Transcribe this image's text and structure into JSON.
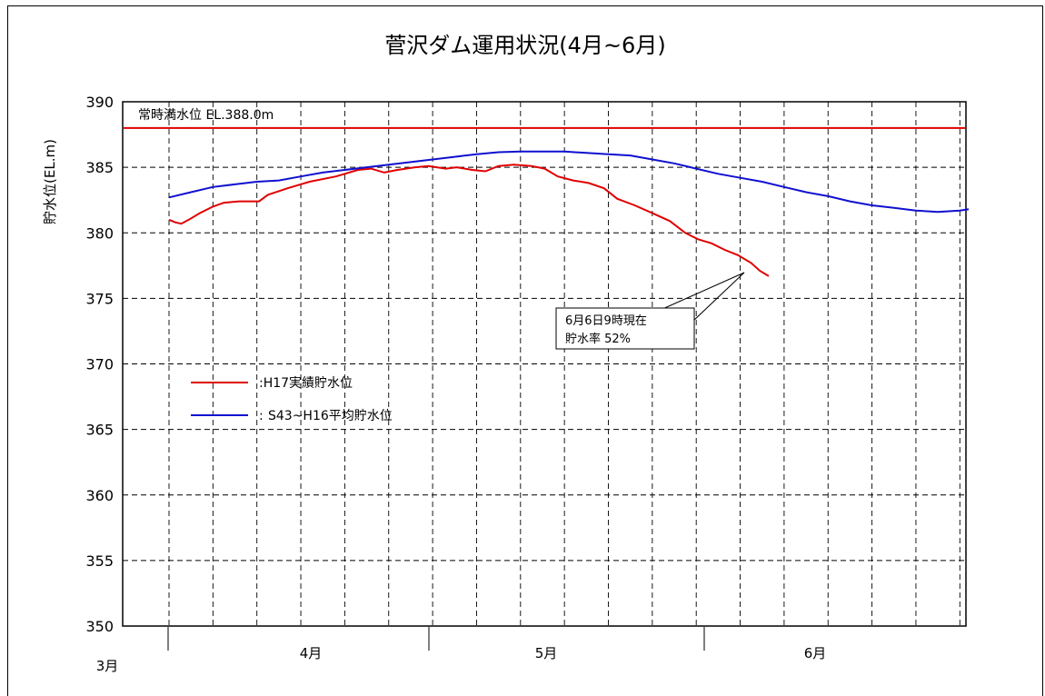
{
  "chart_data": {
    "type": "line",
    "title": "菅沢ダム運用状況(4月~6月)",
    "ylabel": "貯水位(EL.m)",
    "ylim": [
      350,
      390
    ],
    "yticks": [
      350,
      355,
      360,
      365,
      370,
      375,
      380,
      385,
      390
    ],
    "month_labels": [
      "3月",
      "4月",
      "5月",
      "6月"
    ],
    "grid": true,
    "reference_line": {
      "label": "常時満水位 EL.388.0m",
      "value": 388.0,
      "color": "#e00000"
    },
    "annotation": {
      "line1": "6月6日9時現在",
      "line2": "貯水率 52%"
    },
    "legend_position": "middle-left",
    "series": [
      {
        "name": ":H17実績貯水位",
        "color": "#e00000",
        "points": [
          [
            0,
            381.0
          ],
          [
            0.14,
            380.8
          ],
          [
            0.28,
            380.7
          ],
          [
            0.45,
            381.0
          ],
          [
            0.7,
            381.5
          ],
          [
            1.0,
            382.0
          ],
          [
            1.25,
            382.3
          ],
          [
            1.6,
            382.4
          ],
          [
            2.05,
            382.4
          ],
          [
            2.25,
            382.9
          ],
          [
            2.7,
            383.4
          ],
          [
            3.2,
            383.9
          ],
          [
            3.8,
            384.3
          ],
          [
            4.3,
            384.8
          ],
          [
            4.6,
            384.9
          ],
          [
            4.9,
            384.6
          ],
          [
            5.2,
            384.8
          ],
          [
            5.6,
            385.0
          ],
          [
            5.9,
            385.1
          ],
          [
            6.3,
            384.9
          ],
          [
            6.55,
            385.0
          ],
          [
            6.9,
            384.8
          ],
          [
            7.2,
            384.7
          ],
          [
            7.5,
            385.1
          ],
          [
            7.85,
            385.2
          ],
          [
            8.25,
            385.1
          ],
          [
            8.55,
            384.9
          ],
          [
            8.85,
            384.3
          ],
          [
            9.2,
            384.0
          ],
          [
            9.55,
            383.8
          ],
          [
            9.9,
            383.4
          ],
          [
            10.2,
            382.6
          ],
          [
            10.6,
            382.1
          ],
          [
            11.0,
            381.5
          ],
          [
            11.4,
            380.9
          ],
          [
            11.75,
            380.0
          ],
          [
            12.05,
            379.5
          ],
          [
            12.35,
            379.2
          ],
          [
            12.65,
            378.7
          ],
          [
            12.95,
            378.3
          ],
          [
            13.25,
            377.7
          ],
          [
            13.45,
            377.1
          ],
          [
            13.65,
            376.7
          ]
        ]
      },
      {
        "name": "S43~H16平均貯水位",
        "color": "#1010d0",
        "points": [
          [
            0,
            382.7
          ],
          [
            0.5,
            383.1
          ],
          [
            1.0,
            383.5
          ],
          [
            1.5,
            383.7
          ],
          [
            2.0,
            383.9
          ],
          [
            2.5,
            384.0
          ],
          [
            3.0,
            384.3
          ],
          [
            3.5,
            384.6
          ],
          [
            4.0,
            384.8
          ],
          [
            4.5,
            385.0
          ],
          [
            5.0,
            385.2
          ],
          [
            5.5,
            385.4
          ],
          [
            6.0,
            385.6
          ],
          [
            6.5,
            385.8
          ],
          [
            7.0,
            386.0
          ],
          [
            7.5,
            386.15
          ],
          [
            8.0,
            386.2
          ],
          [
            8.5,
            386.2
          ],
          [
            9.0,
            386.2
          ],
          [
            9.5,
            386.1
          ],
          [
            10.0,
            386.0
          ],
          [
            10.5,
            385.9
          ],
          [
            11.0,
            385.6
          ],
          [
            11.5,
            385.3
          ],
          [
            12.0,
            384.9
          ],
          [
            12.5,
            384.5
          ],
          [
            13.0,
            384.2
          ],
          [
            13.5,
            383.9
          ],
          [
            14.0,
            383.5
          ],
          [
            14.5,
            383.1
          ],
          [
            15.0,
            382.8
          ],
          [
            15.5,
            382.4
          ],
          [
            16.0,
            382.1
          ],
          [
            16.5,
            381.9
          ],
          [
            17.0,
            381.7
          ],
          [
            17.5,
            381.6
          ],
          [
            18.0,
            381.7
          ],
          [
            18.2,
            381.8
          ]
        ]
      }
    ]
  }
}
